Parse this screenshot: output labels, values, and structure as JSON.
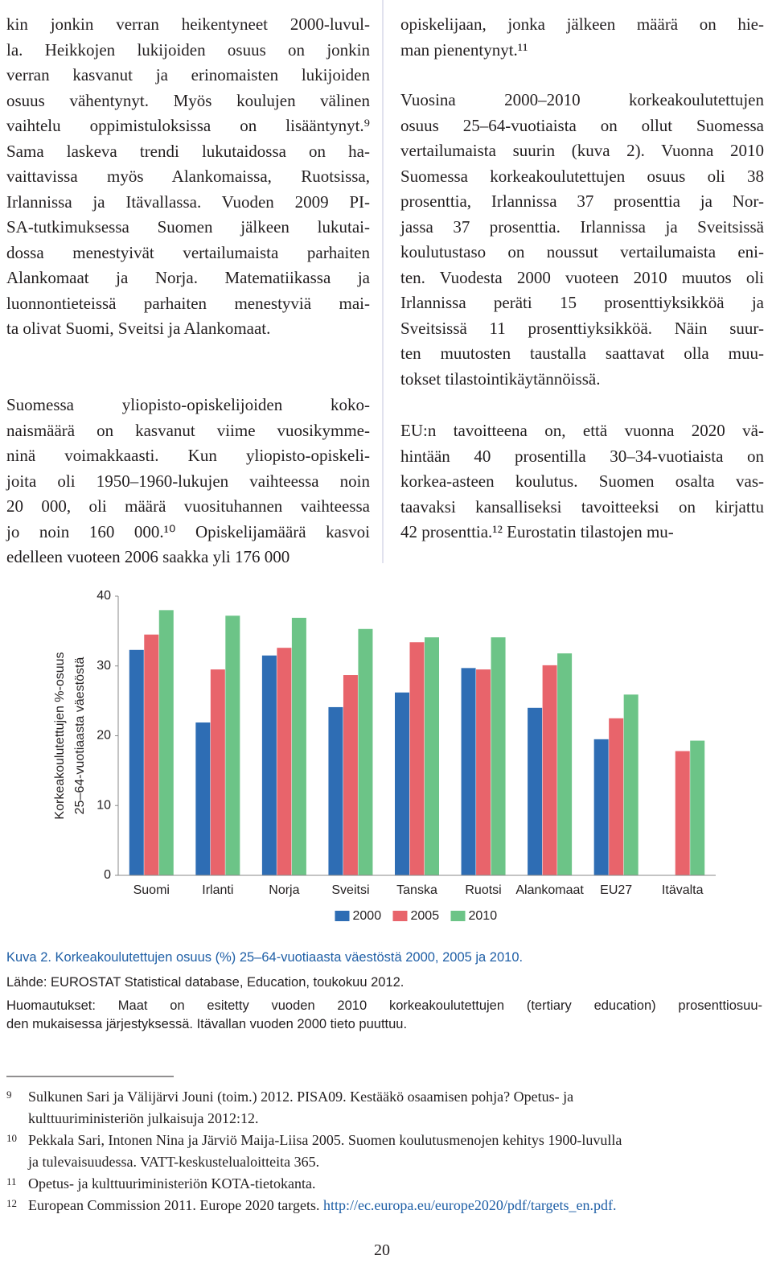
{
  "left_column": {
    "paragraphs": [
      [
        "kin jonkin verran heikentyneet 2000-luvul-",
        "la. Heikkojen lukijoiden osuus on jonkin",
        "verran kasvanut ja erinomaisten lukijoiden",
        "osuus vähentynyt. Myös koulujen välinen",
        "vaihtelu oppimistuloksissa on lisääntynyt.⁹",
        "Sama laskeva trendi lukutaidossa on ha-",
        "vaittavissa myös Alankomaissa, Ruotsissa,",
        "Irlannissa ja Itävallassa. Vuoden 2009 PI-",
        "SA-tutkimuksessa Suomen jälkeen lukutai-",
        "dossa menestyivät vertailumaista parhaiten",
        "Alankomaat ja Norja. Matematiikassa ja",
        "luonnontieteissä parhaiten menestyviä mai-",
        "ta olivat Suomi, Sveitsi ja Alankomaat."
      ],
      [
        "Suomessa yliopisto-opiskelijoiden koko-",
        "naismäärä on kasvanut viime vuosikymme-",
        "ninä voimakkaasti. Kun yliopisto-opiskeli-",
        "joita oli 1950–1960-lukujen vaihteessa noin",
        "20 000, oli määrä vuosituhannen vaihteessa",
        "jo noin 160 000.¹⁰ Opiskelijamäärä kasvoi",
        "edelleen vuoteen 2006 saakka yli 176 000"
      ]
    ]
  },
  "right_column": {
    "paragraphs": [
      [
        "opiskelijaan, jonka jälkeen määrä on hie-",
        "man pienentynyt.¹¹"
      ],
      [
        "Vuosina 2000–2010 korkeakoulutettujen",
        "osuus 25–64-vuotiaista on ollut Suomessa",
        "vertailumaista suurin (kuva 2). Vuonna 2010",
        "Suomessa korkeakoulutettujen osuus oli 38",
        "prosenttia, Irlannissa 37 prosenttia ja Nor-",
        "jassa 37 prosenttia. Irlannissa ja Sveitsissä",
        "koulutustaso on noussut vertailumaista eni-",
        "ten. Vuodesta 2000 vuoteen 2010 muutos oli",
        "Irlannissa peräti 15 prosenttiyksikköä ja",
        "Sveitsissä 11 prosenttiyksikköä. Näin suur-",
        "ten muutosten taustalla saattavat olla muu-",
        "tokset tilastointikäytännöissä."
      ],
      [
        "EU:n tavoitteena on, että vuonna 2020 vä-",
        "hintään 40 prosentilla 30–34-vuotiaista on",
        "korkea-asteen koulutus. Suomen osalta vas-",
        "taavaksi kansalliseksi tavoitteeksi on kirjattu",
        "42 prosenttia.¹² Eurostatin tilastojen mu-"
      ]
    ]
  },
  "chart_data": {
    "type": "bar",
    "ylabel": [
      "Korkeakoulutettujen %-osuus",
      "25–64-vuotiaasta väestöstä"
    ],
    "categories": [
      "Suomi",
      "Irlanti",
      "Norja",
      "Sveitsi",
      "Tanska",
      "Ruotsi",
      "Alankomaat",
      "EU27",
      "Itävalta"
    ],
    "series": [
      {
        "name": "2000",
        "color": "#2e6db4",
        "values": [
          32.3,
          21.9,
          31.5,
          24.1,
          26.2,
          29.7,
          24.0,
          19.5,
          null
        ]
      },
      {
        "name": "2005",
        "color": "#e8646b",
        "values": [
          34.5,
          29.5,
          32.6,
          28.7,
          33.4,
          29.5,
          30.1,
          22.5,
          17.8
        ]
      },
      {
        "name": "2010",
        "color": "#6cc487",
        "values": [
          38.0,
          37.2,
          36.9,
          35.3,
          34.1,
          34.1,
          31.8,
          25.9,
          19.3
        ]
      }
    ],
    "ylim": [
      0,
      40
    ],
    "yticks": [
      0,
      10,
      20,
      30,
      40
    ],
    "grid": false,
    "legend": "bottom"
  },
  "caption": {
    "title": "Kuva 2. Korkeakoulutettujen osuus (%) 25–64-vuotiaasta väestöstä 2000, 2005 ja 2010.",
    "source": "Lähde: EUROSTAT Statistical database, Education, toukokuu 2012.",
    "notes": [
      "Huomautukset: Maat on esitetty vuoden 2010 korkeakoulutettujen (tertiary education) prosenttiosuu-",
      "den mukaisessa järjestyksessä. Itävallan vuoden 2000 tieto puuttuu."
    ]
  },
  "footnotes": [
    {
      "number": "9",
      "lines": [
        "Sulkunen Sari ja Välijärvi Jouni (toim.) 2012. PISA09. Kestääkö osaamisen pohja? Opetus- ja",
        "kulttuuriministeriön julkaisuja 2012:12."
      ]
    },
    {
      "number": "10",
      "lines": [
        "Pekkala Sari, Intonen Nina ja Järviö Maija-Liisa 2005. Suomen koulutusmenojen kehitys 1900-luvulla",
        "ja tulevaisuudessa. VATT-keskustelualoitteita 365."
      ]
    },
    {
      "number": "11",
      "lines": [
        "Opetus- ja kulttuuriministeriön KOTA-tietokanta."
      ]
    },
    {
      "number": "12",
      "lines": [
        "European Commission 2011. Europe 2020 targets."
      ],
      "link": "http://ec.europa.eu/europe2020/pdf/targets_en.pdf."
    }
  ],
  "page_number": "20"
}
